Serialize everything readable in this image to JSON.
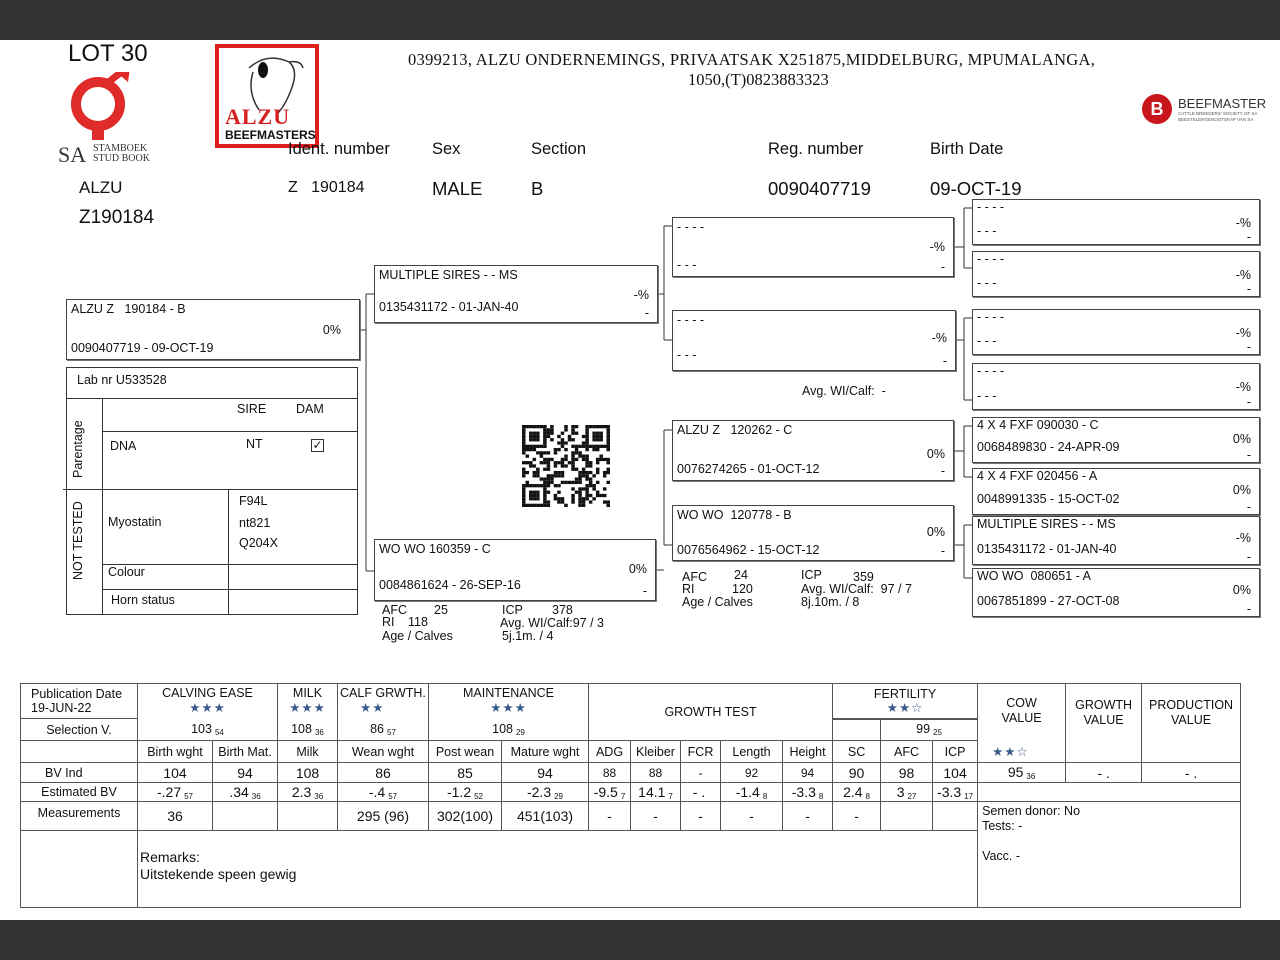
{
  "lot": "LOT 30",
  "logos": {
    "studbook": {
      "sa": "SA",
      "line1": "STAMBOEK",
      "line2": "STUD BOOK"
    },
    "alzu": {
      "line1": "ALZU",
      "line2": "BEEFMASTERS"
    },
    "beefmaster": {
      "letter": "B",
      "name": "BEEFMASTER",
      "sub1": "CATTLE BREEDERS' SOCIETY OF SA",
      "sub2": "BEESTELERGENOOTSKAP VAN SA"
    }
  },
  "address": {
    "line1": "0399213,  ALZU ONDERNEMINGS, PRIVAATSAK X251875,MIDDELBURG, MPUMALANGA,",
    "line2": "1050,(T)0823883323"
  },
  "animal_header": {
    "herd": "ALZU",
    "id": "Z190184",
    "labels": {
      "ident": "Ident. number",
      "sex": "Sex",
      "section": "Section",
      "reg": "Reg. number",
      "birth": "Birth Date"
    },
    "values": {
      "ident": "Z   190184",
      "sex": "MALE",
      "section": "B",
      "reg": "0090407719",
      "birth": "09-OCT-19"
    }
  },
  "pedigree": {
    "animal": {
      "name": "ALZU Z   190184 - B",
      "pct": "0%",
      "reg": "0090407719 -  09-OCT-19"
    },
    "sire": {
      "name": "MULTIPLE SIRES - - MS",
      "pct": "-%",
      "reg": "0135431172 - 01-JAN-40",
      "dash": "-"
    },
    "dam": {
      "name": "WO WO  160359 - C",
      "pct": "0%",
      "reg": "0084861624 - 26-SEP-16",
      "dash": "-",
      "stats": {
        "afc_l": "AFC",
        "afc": "25",
        "ri_l": "RI",
        "ri": "118",
        "age_l": "Age / Calves",
        "icp_l": "ICP",
        "icp": "378",
        "wi": "Avg. WI/Calf:97 / 3",
        "age": "5j.1m. / 4"
      }
    },
    "ss": {
      "name": "- - - -",
      "pct": "-%",
      "reg": "- - -",
      "dash": "-"
    },
    "sd": {
      "name": "- - - -",
      "pct": "-%",
      "reg": "- - -",
      "dash": "-",
      "wi": "Avg. WI/Calf:  -"
    },
    "ds": {
      "name": "ALZU Z   120262 - C",
      "pct": "0%",
      "reg": "0076274265 - 01-OCT-12",
      "dash": "-"
    },
    "dd": {
      "name": "WO WO  120778 - B",
      "pct": "0%",
      "reg": "0076564962 - 15-OCT-12",
      "dash": "-",
      "stats": {
        "afc_l": "AFC",
        "afc": "24",
        "ri_l": "RI",
        "ri": "120",
        "age_l": "Age / Calves",
        "icp_l": "ICP",
        "icp": "359",
        "wi": "Avg. WI/Calf:  97 / 7",
        "age": "8j.10m. / 8"
      }
    },
    "g4": [
      {
        "name": "- - - -",
        "reg": "- - -",
        "pct": "-%",
        "dash": "-"
      },
      {
        "name": "- - - -",
        "reg": "- - -",
        "pct": "-%",
        "dash": "-"
      },
      {
        "name": "- - - -",
        "reg": "- - -",
        "pct": "-%",
        "dash": "-"
      },
      {
        "name": "- - - -",
        "reg": "- - -",
        "pct": "-%",
        "dash": "-"
      },
      {
        "name": "4 X 4 FXF 090030 - C",
        "reg": "0068489830 - 24-APR-09",
        "pct": "0%",
        "dash": "-"
      },
      {
        "name": "4 X 4 FXF 020456 - A",
        "reg": "0048991335 - 15-OCT-02",
        "pct": "0%",
        "dash": "-"
      },
      {
        "name": "MULTIPLE SIRES - - MS",
        "reg": "0135431172 - 01-JAN-40",
        "pct": "-%",
        "dash": "-"
      },
      {
        "name": "WO WO  080651 - A",
        "reg": "0067851899 - 27-OCT-08",
        "pct": "0%",
        "dash": "-"
      }
    ]
  },
  "lab": {
    "lab_nr": "Lab nr  U533528",
    "parentage": "Parentage",
    "not_tested": "NOT TESTED",
    "sire": "SIRE",
    "dam": "DAM",
    "dna": "DNA",
    "dna_sire": "NT",
    "dna_dam_checked": true,
    "myostatin": "Myostatin",
    "myo_values": [
      "F94L",
      "nt821",
      "Q204X"
    ],
    "colour": "Colour",
    "horn": "Horn status"
  },
  "table": {
    "pub_label": "Publication Date",
    "pub_date": "19-JUN-22",
    "groups": {
      "calving": "CALVING EASE",
      "milk": "MILK",
      "calf": "CALF GRWTH.",
      "maint": "MAINTENANCE",
      "growth_test": "GROWTH TEST",
      "fertility": "FERTILITY",
      "cow": "COW VALUE",
      "growth_value": "GROWTH VALUE",
      "production": "PRODUCTION VALUE"
    },
    "stars": {
      "calving": "★★★",
      "milk": "★★★",
      "calf": "★★",
      "maint": "★★★",
      "fertility": "★★☆",
      "cow": "★★☆"
    },
    "selection_label": "Selection V.",
    "selection": {
      "calving": [
        "103",
        "54"
      ],
      "milk": [
        "108",
        "36"
      ],
      "calf": [
        "86",
        "57"
      ],
      "maint": [
        "108",
        "29"
      ],
      "fertility": [
        "99",
        "25"
      ]
    },
    "columns": [
      "Birth wght",
      "Birth Mat.",
      "Milk",
      "Wean wght",
      "Post wean",
      "Mature wght",
      "ADG",
      "Kleiber",
      "FCR",
      "Length",
      "Height",
      "SC",
      "AFC",
      "ICP"
    ],
    "bv_label": "BV Ind",
    "bv": [
      "104",
      "94",
      "108",
      "86",
      "85",
      "94",
      "88",
      "88",
      "-",
      "92",
      "94",
      "90",
      "98",
      "104"
    ],
    "bv_cow": [
      "95",
      "36"
    ],
    "bv_growth": "- .",
    "bv_production": "- .",
    "ebv_label": "Estimated BV",
    "ebv": [
      [
        "-.27",
        "57"
      ],
      [
        ".34",
        "36"
      ],
      [
        "2.3",
        "36"
      ],
      [
        "-.4",
        "57"
      ],
      [
        "-1.2",
        "52"
      ],
      [
        "-2.3",
        "29"
      ],
      [
        "-9.5",
        "7"
      ],
      [
        "14.1",
        "7"
      ],
      [
        "- .",
        ""
      ],
      [
        "-1.4",
        "8"
      ],
      [
        "-3.3",
        "8"
      ],
      [
        "2.4",
        "8"
      ],
      [
        "3",
        "27"
      ],
      [
        "-3.3",
        "17"
      ]
    ],
    "meas_label": "Measurements",
    "meas": [
      "36",
      "",
      "",
      "295  (96)",
      "302(100)",
      "451(103)",
      "-",
      "-",
      "-",
      "-",
      "-",
      "-",
      "",
      ""
    ],
    "semen": "Semen donor: No",
    "tests": "Tests: -",
    "vacc": "Vacc. -",
    "remarks_label": "Remarks:",
    "remarks": "Uitstekende speen gewig"
  }
}
